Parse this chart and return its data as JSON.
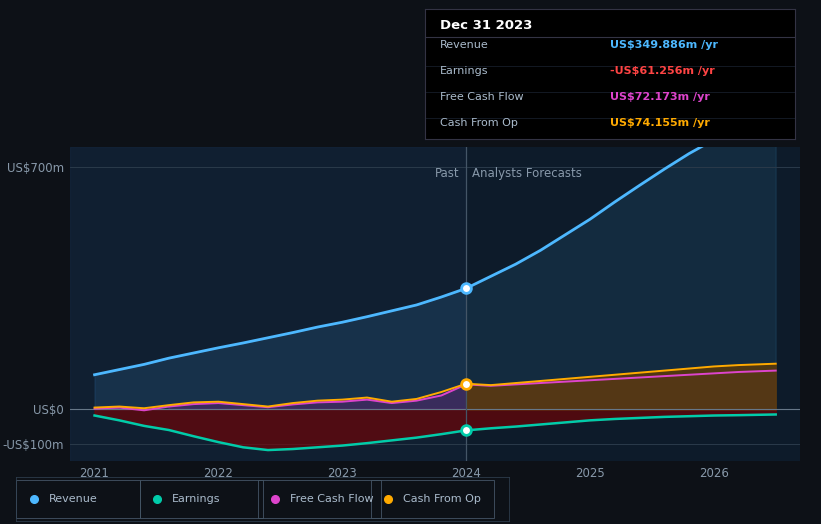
{
  "background_color": "#0d1117",
  "plot_bg_color": "#0d1b2a",
  "tooltip_title": "Dec 31 2023",
  "tooltip_rows": [
    {
      "label": "Revenue",
      "value": "US$349.886m /yr",
      "color": "#4db8ff"
    },
    {
      "label": "Earnings",
      "value": "-US$61.256m /yr",
      "color": "#ff4444"
    },
    {
      "label": "Free Cash Flow",
      "value": "US$72.173m /yr",
      "color": "#dd44cc"
    },
    {
      "label": "Cash From Op",
      "value": "US$74.155m /yr",
      "color": "#ffaa00"
    }
  ],
  "years": [
    2021.0,
    2021.2,
    2021.4,
    2021.6,
    2021.8,
    2022.0,
    2022.2,
    2022.4,
    2022.6,
    2022.8,
    2023.0,
    2023.2,
    2023.4,
    2023.6,
    2023.8,
    2024.0,
    2024.2,
    2024.4,
    2024.6,
    2024.8,
    2025.0,
    2025.2,
    2025.4,
    2025.6,
    2025.8,
    2026.0,
    2026.2,
    2026.5
  ],
  "revenue": [
    100,
    115,
    130,
    148,
    163,
    178,
    192,
    207,
    222,
    238,
    252,
    268,
    285,
    302,
    325,
    350,
    385,
    420,
    460,
    505,
    550,
    600,
    648,
    695,
    740,
    780,
    815,
    860
  ],
  "earnings": [
    -18,
    -32,
    -48,
    -60,
    -78,
    -95,
    -110,
    -118,
    -115,
    -110,
    -105,
    -98,
    -90,
    -82,
    -72,
    -61,
    -55,
    -50,
    -44,
    -38,
    -32,
    -28,
    -25,
    -22,
    -20,
    -18,
    -17,
    -15
  ],
  "free_cash_flow": [
    2,
    5,
    -3,
    8,
    15,
    18,
    12,
    6,
    14,
    20,
    22,
    28,
    18,
    25,
    40,
    72,
    68,
    72,
    76,
    80,
    84,
    88,
    92,
    96,
    100,
    104,
    108,
    112
  ],
  "cash_from_op": [
    5,
    8,
    3,
    12,
    20,
    22,
    15,
    8,
    18,
    25,
    28,
    34,
    22,
    30,
    50,
    74,
    70,
    76,
    82,
    88,
    94,
    100,
    106,
    112,
    118,
    124,
    128,
    132
  ],
  "revenue_color": "#4db8ff",
  "earnings_color": "#00ccaa",
  "fcf_color": "#dd44cc",
  "cop_color": "#ffaa00",
  "divider_x": 2024.0,
  "xlim": [
    2020.8,
    2026.7
  ],
  "ylim": [
    -150,
    760
  ],
  "ytick_vals": [
    -100,
    0,
    700
  ],
  "ytick_labels": [
    "-US$100m",
    "US$0",
    "US$700m"
  ],
  "xtick_vals": [
    2021,
    2022,
    2023,
    2024,
    2025,
    2026
  ],
  "past_label": "Past",
  "forecast_label": "Analysts Forecasts",
  "legend_items": [
    {
      "label": "Revenue",
      "color": "#4db8ff"
    },
    {
      "label": "Earnings",
      "color": "#00ccaa"
    },
    {
      "label": "Free Cash Flow",
      "color": "#dd44cc"
    },
    {
      "label": "Cash From Op",
      "color": "#ffaa00"
    }
  ]
}
